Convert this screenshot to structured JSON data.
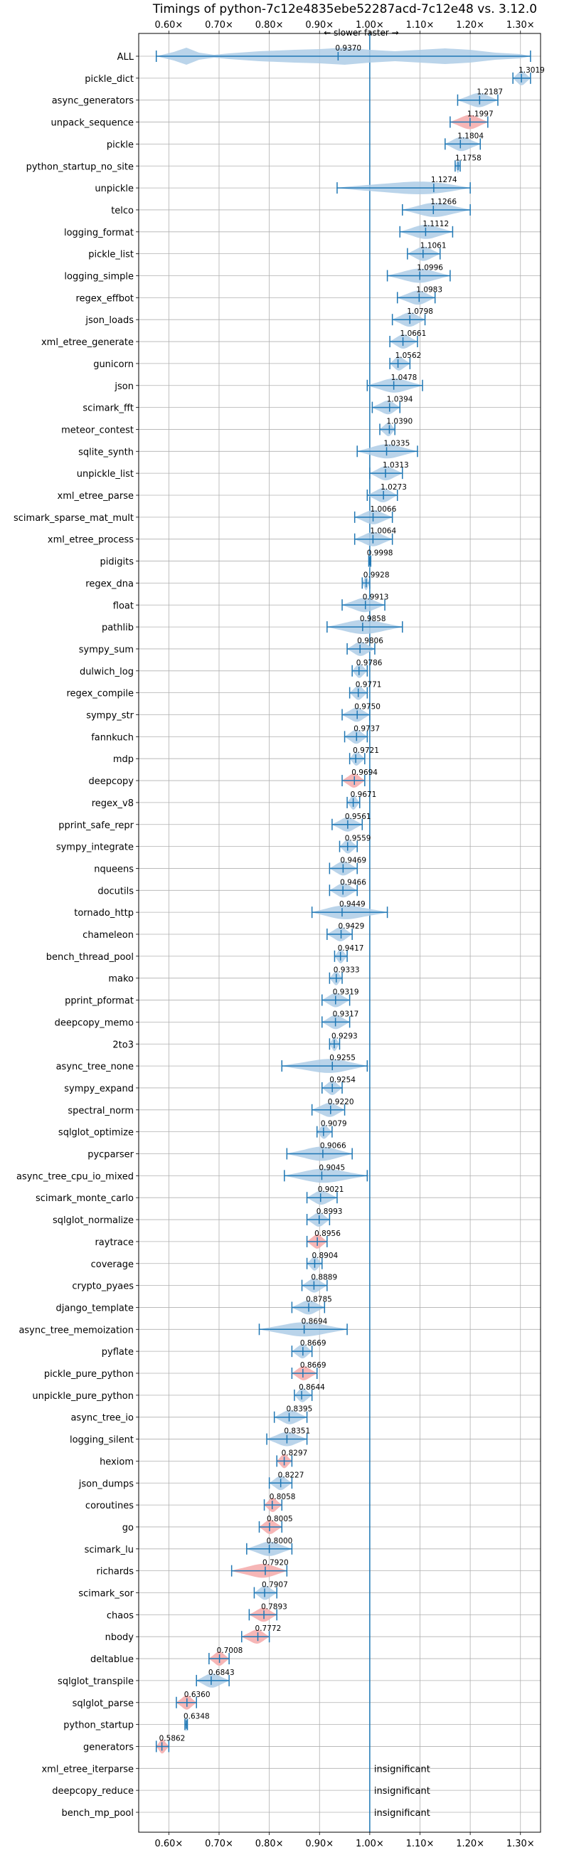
{
  "chart_data": {
    "type": "violin",
    "title": "Timings of python-7c12e4835ebe52287acd-7c12e48 vs. 3.12.0",
    "direction_label": "← slower    faster →",
    "xlim": [
      0.54,
      1.34
    ],
    "xticks": [
      "0.60×",
      "0.70×",
      "0.80×",
      "0.90×",
      "1.00×",
      "1.10×",
      "1.20×",
      "1.30×"
    ],
    "xtick_values": [
      0.6,
      0.7,
      0.8,
      0.9,
      1.0,
      1.1,
      1.2,
      1.3
    ],
    "grid": true,
    "colors": {
      "faster": "#1f77b4",
      "slower": "#d62728",
      "fill_faster": "#aecde6",
      "fill_slower": "#f4a9a9",
      "refline": "#1f77b4"
    },
    "insignificant_label": "insignificant",
    "benchmarks": [
      {
        "name": "ALL",
        "median": "0.9370",
        "value": 0.937,
        "lo": 0.575,
        "hi": 1.32,
        "shape": "all",
        "color": "blue"
      },
      {
        "name": "pickle_dict",
        "median": "1.3019",
        "value": 1.3019,
        "lo": 1.285,
        "hi": 1.32,
        "color": "blue"
      },
      {
        "name": "async_generators",
        "median": "1.2187",
        "value": 1.2187,
        "lo": 1.175,
        "hi": 1.255,
        "color": "blue"
      },
      {
        "name": "unpack_sequence",
        "median": "1.1997",
        "value": 1.1997,
        "lo": 1.16,
        "hi": 1.235,
        "color": "red"
      },
      {
        "name": "pickle",
        "median": "1.1804",
        "value": 1.1804,
        "lo": 1.15,
        "hi": 1.22,
        "color": "blue"
      },
      {
        "name": "python_startup_no_site",
        "median": "1.1758",
        "value": 1.1758,
        "lo": 1.17,
        "hi": 1.18,
        "color": "blue"
      },
      {
        "name": "unpickle",
        "median": "1.1274",
        "value": 1.1274,
        "lo": 0.935,
        "hi": 1.2,
        "color": "blue"
      },
      {
        "name": "telco",
        "median": "1.1266",
        "value": 1.1266,
        "lo": 1.065,
        "hi": 1.2,
        "color": "blue"
      },
      {
        "name": "logging_format",
        "median": "1.1112",
        "value": 1.1112,
        "lo": 1.06,
        "hi": 1.165,
        "color": "blue"
      },
      {
        "name": "pickle_list",
        "median": "1.1061",
        "value": 1.1061,
        "lo": 1.075,
        "hi": 1.14,
        "color": "blue"
      },
      {
        "name": "logging_simple",
        "median": "1.0996",
        "value": 1.0996,
        "lo": 1.035,
        "hi": 1.16,
        "color": "blue"
      },
      {
        "name": "regex_effbot",
        "median": "1.0983",
        "value": 1.0983,
        "lo": 1.055,
        "hi": 1.13,
        "color": "blue"
      },
      {
        "name": "json_loads",
        "median": "1.0798",
        "value": 1.0798,
        "lo": 1.045,
        "hi": 1.11,
        "color": "blue"
      },
      {
        "name": "xml_etree_generate",
        "median": "1.0661",
        "value": 1.0661,
        "lo": 1.04,
        "hi": 1.095,
        "color": "blue"
      },
      {
        "name": "gunicorn",
        "median": "1.0562",
        "value": 1.0562,
        "lo": 1.04,
        "hi": 1.08,
        "color": "blue"
      },
      {
        "name": "json",
        "median": "1.0478",
        "value": 1.0478,
        "lo": 0.995,
        "hi": 1.105,
        "color": "blue"
      },
      {
        "name": "scimark_fft",
        "median": "1.0394",
        "value": 1.0394,
        "lo": 1.005,
        "hi": 1.06,
        "color": "blue"
      },
      {
        "name": "meteor_contest",
        "median": "1.0390",
        "value": 1.039,
        "lo": 1.02,
        "hi": 1.05,
        "color": "blue"
      },
      {
        "name": "sqlite_synth",
        "median": "1.0335",
        "value": 1.0335,
        "lo": 0.975,
        "hi": 1.095,
        "color": "blue"
      },
      {
        "name": "unpickle_list",
        "median": "1.0313",
        "value": 1.0313,
        "lo": 1.0,
        "hi": 1.065,
        "color": "blue"
      },
      {
        "name": "xml_etree_parse",
        "median": "1.0273",
        "value": 1.0273,
        "lo": 0.995,
        "hi": 1.055,
        "color": "blue"
      },
      {
        "name": "scimark_sparse_mat_mult",
        "median": "1.0066",
        "value": 1.0066,
        "lo": 0.97,
        "hi": 1.045,
        "color": "blue"
      },
      {
        "name": "xml_etree_process",
        "median": "1.0064",
        "value": 1.0064,
        "lo": 0.97,
        "hi": 1.045,
        "color": "blue"
      },
      {
        "name": "pidigits",
        "median": "0.9998",
        "value": 0.9998,
        "lo": 0.998,
        "hi": 1.002,
        "color": "blue"
      },
      {
        "name": "regex_dna",
        "median": "0.9928",
        "value": 0.9928,
        "lo": 0.985,
        "hi": 1.0,
        "color": "blue"
      },
      {
        "name": "float",
        "median": "0.9913",
        "value": 0.9913,
        "lo": 0.945,
        "hi": 1.03,
        "color": "blue"
      },
      {
        "name": "pathlib",
        "median": "0.9858",
        "value": 0.9858,
        "lo": 0.915,
        "hi": 1.065,
        "color": "blue"
      },
      {
        "name": "sympy_sum",
        "median": "0.9806",
        "value": 0.9806,
        "lo": 0.955,
        "hi": 1.01,
        "color": "blue"
      },
      {
        "name": "dulwich_log",
        "median": "0.9786",
        "value": 0.9786,
        "lo": 0.965,
        "hi": 0.995,
        "color": "blue"
      },
      {
        "name": "regex_compile",
        "median": "0.9771",
        "value": 0.9771,
        "lo": 0.96,
        "hi": 0.995,
        "color": "blue"
      },
      {
        "name": "sympy_str",
        "median": "0.9750",
        "value": 0.975,
        "lo": 0.945,
        "hi": 1.0,
        "color": "blue"
      },
      {
        "name": "fannkuch",
        "median": "0.9737",
        "value": 0.9737,
        "lo": 0.95,
        "hi": 0.995,
        "color": "blue"
      },
      {
        "name": "mdp",
        "median": "0.9721",
        "value": 0.9721,
        "lo": 0.96,
        "hi": 0.99,
        "color": "blue"
      },
      {
        "name": "deepcopy",
        "median": "0.9694",
        "value": 0.9694,
        "lo": 0.945,
        "hi": 0.99,
        "color": "red"
      },
      {
        "name": "regex_v8",
        "median": "0.9671",
        "value": 0.9671,
        "lo": 0.955,
        "hi": 0.98,
        "color": "blue"
      },
      {
        "name": "pprint_safe_repr",
        "median": "0.9561",
        "value": 0.9561,
        "lo": 0.925,
        "hi": 0.985,
        "color": "blue"
      },
      {
        "name": "sympy_integrate",
        "median": "0.9559",
        "value": 0.9559,
        "lo": 0.94,
        "hi": 0.975,
        "color": "blue"
      },
      {
        "name": "nqueens",
        "median": "0.9469",
        "value": 0.9469,
        "lo": 0.92,
        "hi": 0.975,
        "color": "blue"
      },
      {
        "name": "docutils",
        "median": "0.9466",
        "value": 0.9466,
        "lo": 0.92,
        "hi": 0.975,
        "color": "blue"
      },
      {
        "name": "tornado_http",
        "median": "0.9449",
        "value": 0.9449,
        "lo": 0.885,
        "hi": 1.035,
        "color": "blue"
      },
      {
        "name": "chameleon",
        "median": "0.9429",
        "value": 0.9429,
        "lo": 0.915,
        "hi": 0.965,
        "color": "blue"
      },
      {
        "name": "bench_thread_pool",
        "median": "0.9417",
        "value": 0.9417,
        "lo": 0.93,
        "hi": 0.955,
        "color": "blue"
      },
      {
        "name": "mako",
        "median": "0.9333",
        "value": 0.9333,
        "lo": 0.92,
        "hi": 0.945,
        "color": "blue"
      },
      {
        "name": "pprint_pformat",
        "median": "0.9319",
        "value": 0.9319,
        "lo": 0.905,
        "hi": 0.96,
        "color": "blue"
      },
      {
        "name": "deepcopy_memo",
        "median": "0.9317",
        "value": 0.9317,
        "lo": 0.905,
        "hi": 0.96,
        "color": "blue"
      },
      {
        "name": "2to3",
        "median": "0.9293",
        "value": 0.9293,
        "lo": 0.92,
        "hi": 0.94,
        "color": "blue"
      },
      {
        "name": "async_tree_none",
        "median": "0.9255",
        "value": 0.9255,
        "lo": 0.825,
        "hi": 0.995,
        "color": "blue"
      },
      {
        "name": "sympy_expand",
        "median": "0.9254",
        "value": 0.9254,
        "lo": 0.905,
        "hi": 0.945,
        "color": "blue"
      },
      {
        "name": "spectral_norm",
        "median": "0.9220",
        "value": 0.922,
        "lo": 0.885,
        "hi": 0.95,
        "color": "blue"
      },
      {
        "name": "sqlglot_optimize",
        "median": "0.9079",
        "value": 0.9079,
        "lo": 0.895,
        "hi": 0.925,
        "color": "blue"
      },
      {
        "name": "pycparser",
        "median": "0.9066",
        "value": 0.9066,
        "lo": 0.835,
        "hi": 0.965,
        "color": "blue"
      },
      {
        "name": "async_tree_cpu_io_mixed",
        "median": "0.9045",
        "value": 0.9045,
        "lo": 0.83,
        "hi": 0.995,
        "color": "blue"
      },
      {
        "name": "scimark_monte_carlo",
        "median": "0.9021",
        "value": 0.9021,
        "lo": 0.875,
        "hi": 0.935,
        "color": "blue"
      },
      {
        "name": "sqlglot_normalize",
        "median": "0.8993",
        "value": 0.8993,
        "lo": 0.875,
        "hi": 0.92,
        "color": "blue"
      },
      {
        "name": "raytrace",
        "median": "0.8956",
        "value": 0.8956,
        "lo": 0.875,
        "hi": 0.915,
        "color": "red"
      },
      {
        "name": "coverage",
        "median": "0.8904",
        "value": 0.8904,
        "lo": 0.875,
        "hi": 0.905,
        "color": "blue"
      },
      {
        "name": "crypto_pyaes",
        "median": "0.8889",
        "value": 0.8889,
        "lo": 0.865,
        "hi": 0.915,
        "color": "blue"
      },
      {
        "name": "django_template",
        "median": "0.8785",
        "value": 0.8785,
        "lo": 0.845,
        "hi": 0.91,
        "color": "blue"
      },
      {
        "name": "async_tree_memoization",
        "median": "0.8694",
        "value": 0.8694,
        "lo": 0.78,
        "hi": 0.955,
        "color": "blue"
      },
      {
        "name": "pyflate",
        "median": "0.8669",
        "value": 0.8669,
        "lo": 0.845,
        "hi": 0.885,
        "color": "blue"
      },
      {
        "name": "pickle_pure_python",
        "median": "0.8669",
        "value": 0.8669,
        "lo": 0.845,
        "hi": 0.895,
        "color": "red"
      },
      {
        "name": "unpickle_pure_python",
        "median": "0.8644",
        "value": 0.8644,
        "lo": 0.85,
        "hi": 0.885,
        "color": "blue"
      },
      {
        "name": "async_tree_io",
        "median": "0.8395",
        "value": 0.8395,
        "lo": 0.81,
        "hi": 0.875,
        "color": "blue"
      },
      {
        "name": "logging_silent",
        "median": "0.8351",
        "value": 0.8351,
        "lo": 0.795,
        "hi": 0.875,
        "color": "blue"
      },
      {
        "name": "hexiom",
        "median": "0.8297",
        "value": 0.8297,
        "lo": 0.815,
        "hi": 0.845,
        "color": "red"
      },
      {
        "name": "json_dumps",
        "median": "0.8227",
        "value": 0.8227,
        "lo": 0.8,
        "hi": 0.845,
        "color": "blue"
      },
      {
        "name": "coroutines",
        "median": "0.8058",
        "value": 0.8058,
        "lo": 0.79,
        "hi": 0.825,
        "color": "red"
      },
      {
        "name": "go",
        "median": "0.8005",
        "value": 0.8005,
        "lo": 0.78,
        "hi": 0.825,
        "color": "red"
      },
      {
        "name": "scimark_lu",
        "median": "0.8000",
        "value": 0.8,
        "lo": 0.755,
        "hi": 0.845,
        "color": "blue"
      },
      {
        "name": "richards",
        "median": "0.7920",
        "value": 0.792,
        "lo": 0.725,
        "hi": 0.835,
        "color": "red"
      },
      {
        "name": "scimark_sor",
        "median": "0.7907",
        "value": 0.7907,
        "lo": 0.77,
        "hi": 0.815,
        "color": "blue"
      },
      {
        "name": "chaos",
        "median": "0.7893",
        "value": 0.7893,
        "lo": 0.76,
        "hi": 0.815,
        "color": "red"
      },
      {
        "name": "nbody",
        "median": "0.7772",
        "value": 0.7772,
        "lo": 0.745,
        "hi": 0.8,
        "color": "red"
      },
      {
        "name": "deltablue",
        "median": "0.7008",
        "value": 0.7008,
        "lo": 0.68,
        "hi": 0.72,
        "color": "red"
      },
      {
        "name": "sqlglot_transpile",
        "median": "0.6843",
        "value": 0.6843,
        "lo": 0.655,
        "hi": 0.72,
        "color": "blue"
      },
      {
        "name": "sqlglot_parse",
        "median": "0.6360",
        "value": 0.636,
        "lo": 0.615,
        "hi": 0.655,
        "color": "red"
      },
      {
        "name": "python_startup",
        "median": "0.6348",
        "value": 0.6348,
        "lo": 0.632,
        "hi": 0.637,
        "color": "blue"
      },
      {
        "name": "generators",
        "median": "0.5862",
        "value": 0.5862,
        "lo": 0.575,
        "hi": 0.6,
        "color": "red"
      },
      {
        "name": "xml_etree_iterparse",
        "median": "",
        "value": null,
        "insignificant": true
      },
      {
        "name": "deepcopy_reduce",
        "median": "",
        "value": null,
        "insignificant": true
      },
      {
        "name": "bench_mp_pool",
        "median": "",
        "value": null,
        "insignificant": true
      }
    ]
  }
}
